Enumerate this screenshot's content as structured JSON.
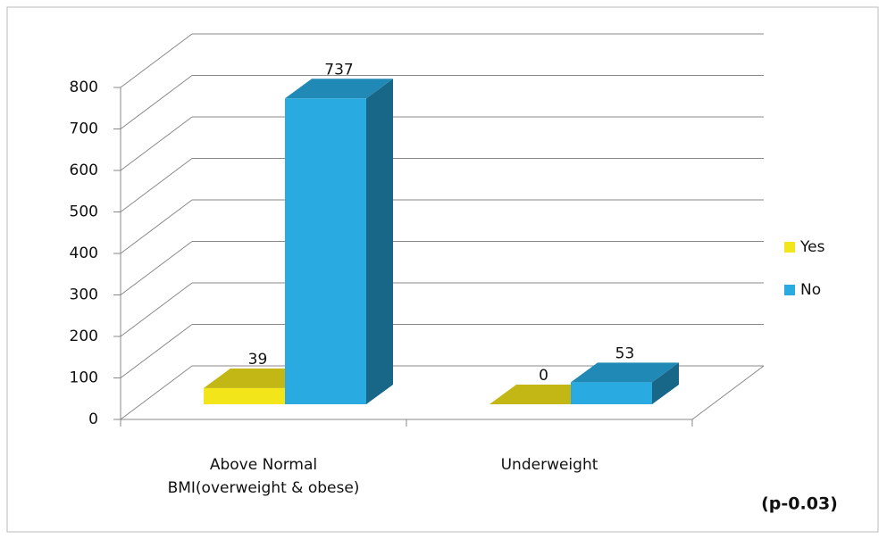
{
  "chart_data": {
    "type": "bar",
    "categories": [
      "Above Normal BMI(overweight & obese)",
      "Underweight"
    ],
    "series": [
      {
        "name": "Yes",
        "color": "#f2e51a",
        "values": [
          39,
          0
        ]
      },
      {
        "name": "No",
        "color": "#29abe2",
        "values": [
          737,
          53
        ]
      }
    ],
    "ylim": [
      0,
      800
    ],
    "yticks": [
      0,
      100,
      200,
      300,
      400,
      500,
      600,
      700,
      800
    ],
    "grid": true,
    "legend": "right",
    "annotation": "(p-0.03)"
  }
}
